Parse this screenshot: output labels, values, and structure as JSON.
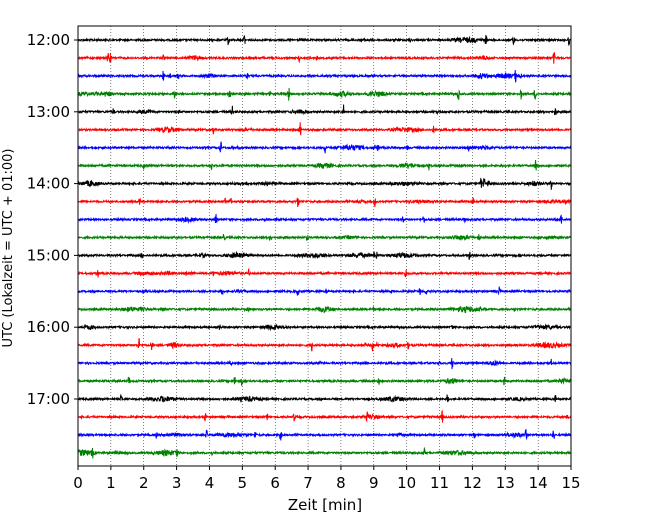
{
  "chart_data": {
    "type": "line",
    "title": "",
    "xlabel": "Zeit  [min]",
    "ylabel": "UTC (Lokalzeit = UTC + 01:00)",
    "xlim": [
      0,
      15
    ],
    "x_ticks": [
      "0",
      "1",
      "2",
      "3",
      "4",
      "5",
      "6",
      "7",
      "8",
      "9",
      "10",
      "11",
      "12",
      "13",
      "14",
      "15"
    ],
    "y_tick_labels": [
      "12:00",
      "13:00",
      "14:00",
      "15:00",
      "16:00",
      "17:00"
    ],
    "grid": "vertical dotted lines at each minute",
    "trace_interval_minutes": 15,
    "trace_colors": [
      "#000000",
      "#ff0000",
      "#0000ff",
      "#008000"
    ],
    "traces": [
      {
        "start": "12:00",
        "color": "#000000"
      },
      {
        "start": "12:15",
        "color": "#ff0000"
      },
      {
        "start": "12:30",
        "color": "#0000ff"
      },
      {
        "start": "12:45",
        "color": "#008000"
      },
      {
        "start": "13:00",
        "color": "#000000"
      },
      {
        "start": "13:15",
        "color": "#ff0000"
      },
      {
        "start": "13:30",
        "color": "#0000ff"
      },
      {
        "start": "13:45",
        "color": "#008000"
      },
      {
        "start": "14:00",
        "color": "#000000"
      },
      {
        "start": "14:15",
        "color": "#ff0000"
      },
      {
        "start": "14:30",
        "color": "#0000ff"
      },
      {
        "start": "14:45",
        "color": "#008000"
      },
      {
        "start": "15:00",
        "color": "#000000"
      },
      {
        "start": "15:15",
        "color": "#ff0000"
      },
      {
        "start": "15:30",
        "color": "#0000ff"
      },
      {
        "start": "15:45",
        "color": "#008000"
      },
      {
        "start": "16:00",
        "color": "#000000"
      },
      {
        "start": "16:15",
        "color": "#ff0000"
      },
      {
        "start": "16:30",
        "color": "#0000ff"
      },
      {
        "start": "16:45",
        "color": "#008000"
      },
      {
        "start": "17:00",
        "color": "#000000"
      },
      {
        "start": "17:15",
        "color": "#ff0000"
      },
      {
        "start": "17:30",
        "color": "#0000ff"
      },
      {
        "start": "17:45",
        "color": "#008000"
      }
    ]
  }
}
